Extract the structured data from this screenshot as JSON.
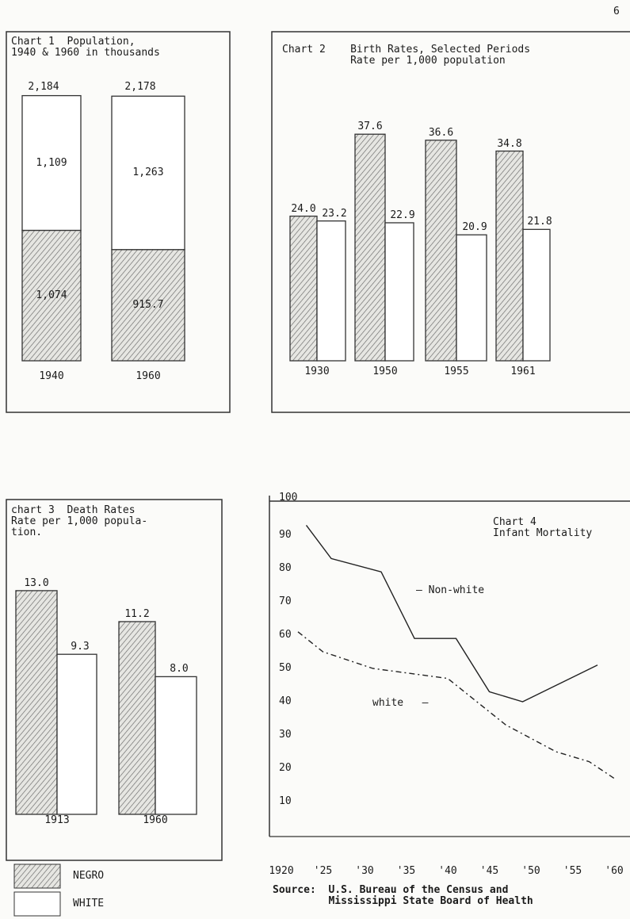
{
  "page_number": "6",
  "chart_data": [
    {
      "type": "bar",
      "title": "Chart 1  Population,\n1940 & 1960 in thousands",
      "stacked": true,
      "categories": [
        "1940",
        "1960"
      ],
      "totals": [
        "2,184",
        "2,178"
      ],
      "series": [
        {
          "name": "NEGRO",
          "values": [
            1074,
            915.7
          ],
          "labels": [
            "1,074",
            "915.7"
          ]
        },
        {
          "name": "WHITE",
          "values": [
            1109,
            1263
          ],
          "labels": [
            "1,109",
            "1,263"
          ]
        }
      ]
    },
    {
      "type": "bar",
      "title": "Chart 2    Birth Rates, Selected Periods\n           Rate per 1,000 population",
      "categories": [
        "1930",
        "1950",
        "1955",
        "1961"
      ],
      "series": [
        {
          "name": "NEGRO",
          "values": [
            24.0,
            37.6,
            36.6,
            34.8
          ],
          "labels": [
            "24.0",
            "37.6",
            "36.6",
            "34.8"
          ]
        },
        {
          "name": "WHITE",
          "values": [
            23.2,
            22.9,
            20.9,
            21.8
          ],
          "labels": [
            "23.2",
            "22.9",
            "20.9",
            "21.8"
          ]
        }
      ]
    },
    {
      "type": "bar",
      "title": "chart 3  Death Rates\nRate per 1,000 popula-\ntion.",
      "categories": [
        "1913",
        "1960"
      ],
      "series": [
        {
          "name": "NEGRO",
          "values": [
            13.0,
            11.2
          ],
          "labels": [
            "13.0",
            "11.2"
          ]
        },
        {
          "name": "WHITE",
          "values": [
            9.3,
            8.0
          ],
          "labels": [
            "9.3",
            "8.0"
          ]
        }
      ]
    },
    {
      "type": "line",
      "title": "Chart 4\nInfant Mortality",
      "ylim": [
        0,
        100
      ],
      "yticks": [
        "100",
        "90",
        "80",
        "70",
        "60",
        "50",
        "40",
        "30",
        "20",
        "10"
      ],
      "xlim": [
        1920,
        1960
      ],
      "xticks": [
        "1920",
        "'25",
        "'30",
        "'35",
        "'40",
        "'45",
        "'50",
        "'55",
        "'60"
      ],
      "series": [
        {
          "name": "Non-white",
          "x": [
            1923,
            1926,
            1932,
            1936,
            1941,
            1945,
            1949,
            1958
          ],
          "y": [
            93,
            83,
            79,
            59,
            59,
            43,
            40,
            51
          ]
        },
        {
          "name": "white",
          "x": [
            1922,
            1925,
            1931,
            1940,
            1943,
            1947,
            1953,
            1957,
            1960
          ],
          "y": [
            61,
            55,
            50,
            47,
            41,
            33,
            25,
            22,
            17
          ]
        }
      ],
      "source": "Source:  U.S. Bureau of the Census and\n         Mississippi State Board of Health"
    }
  ],
  "legend": [
    {
      "label": "NEGRO",
      "pattern": "hatched"
    },
    {
      "label": "WHITE",
      "pattern": "white"
    }
  ]
}
